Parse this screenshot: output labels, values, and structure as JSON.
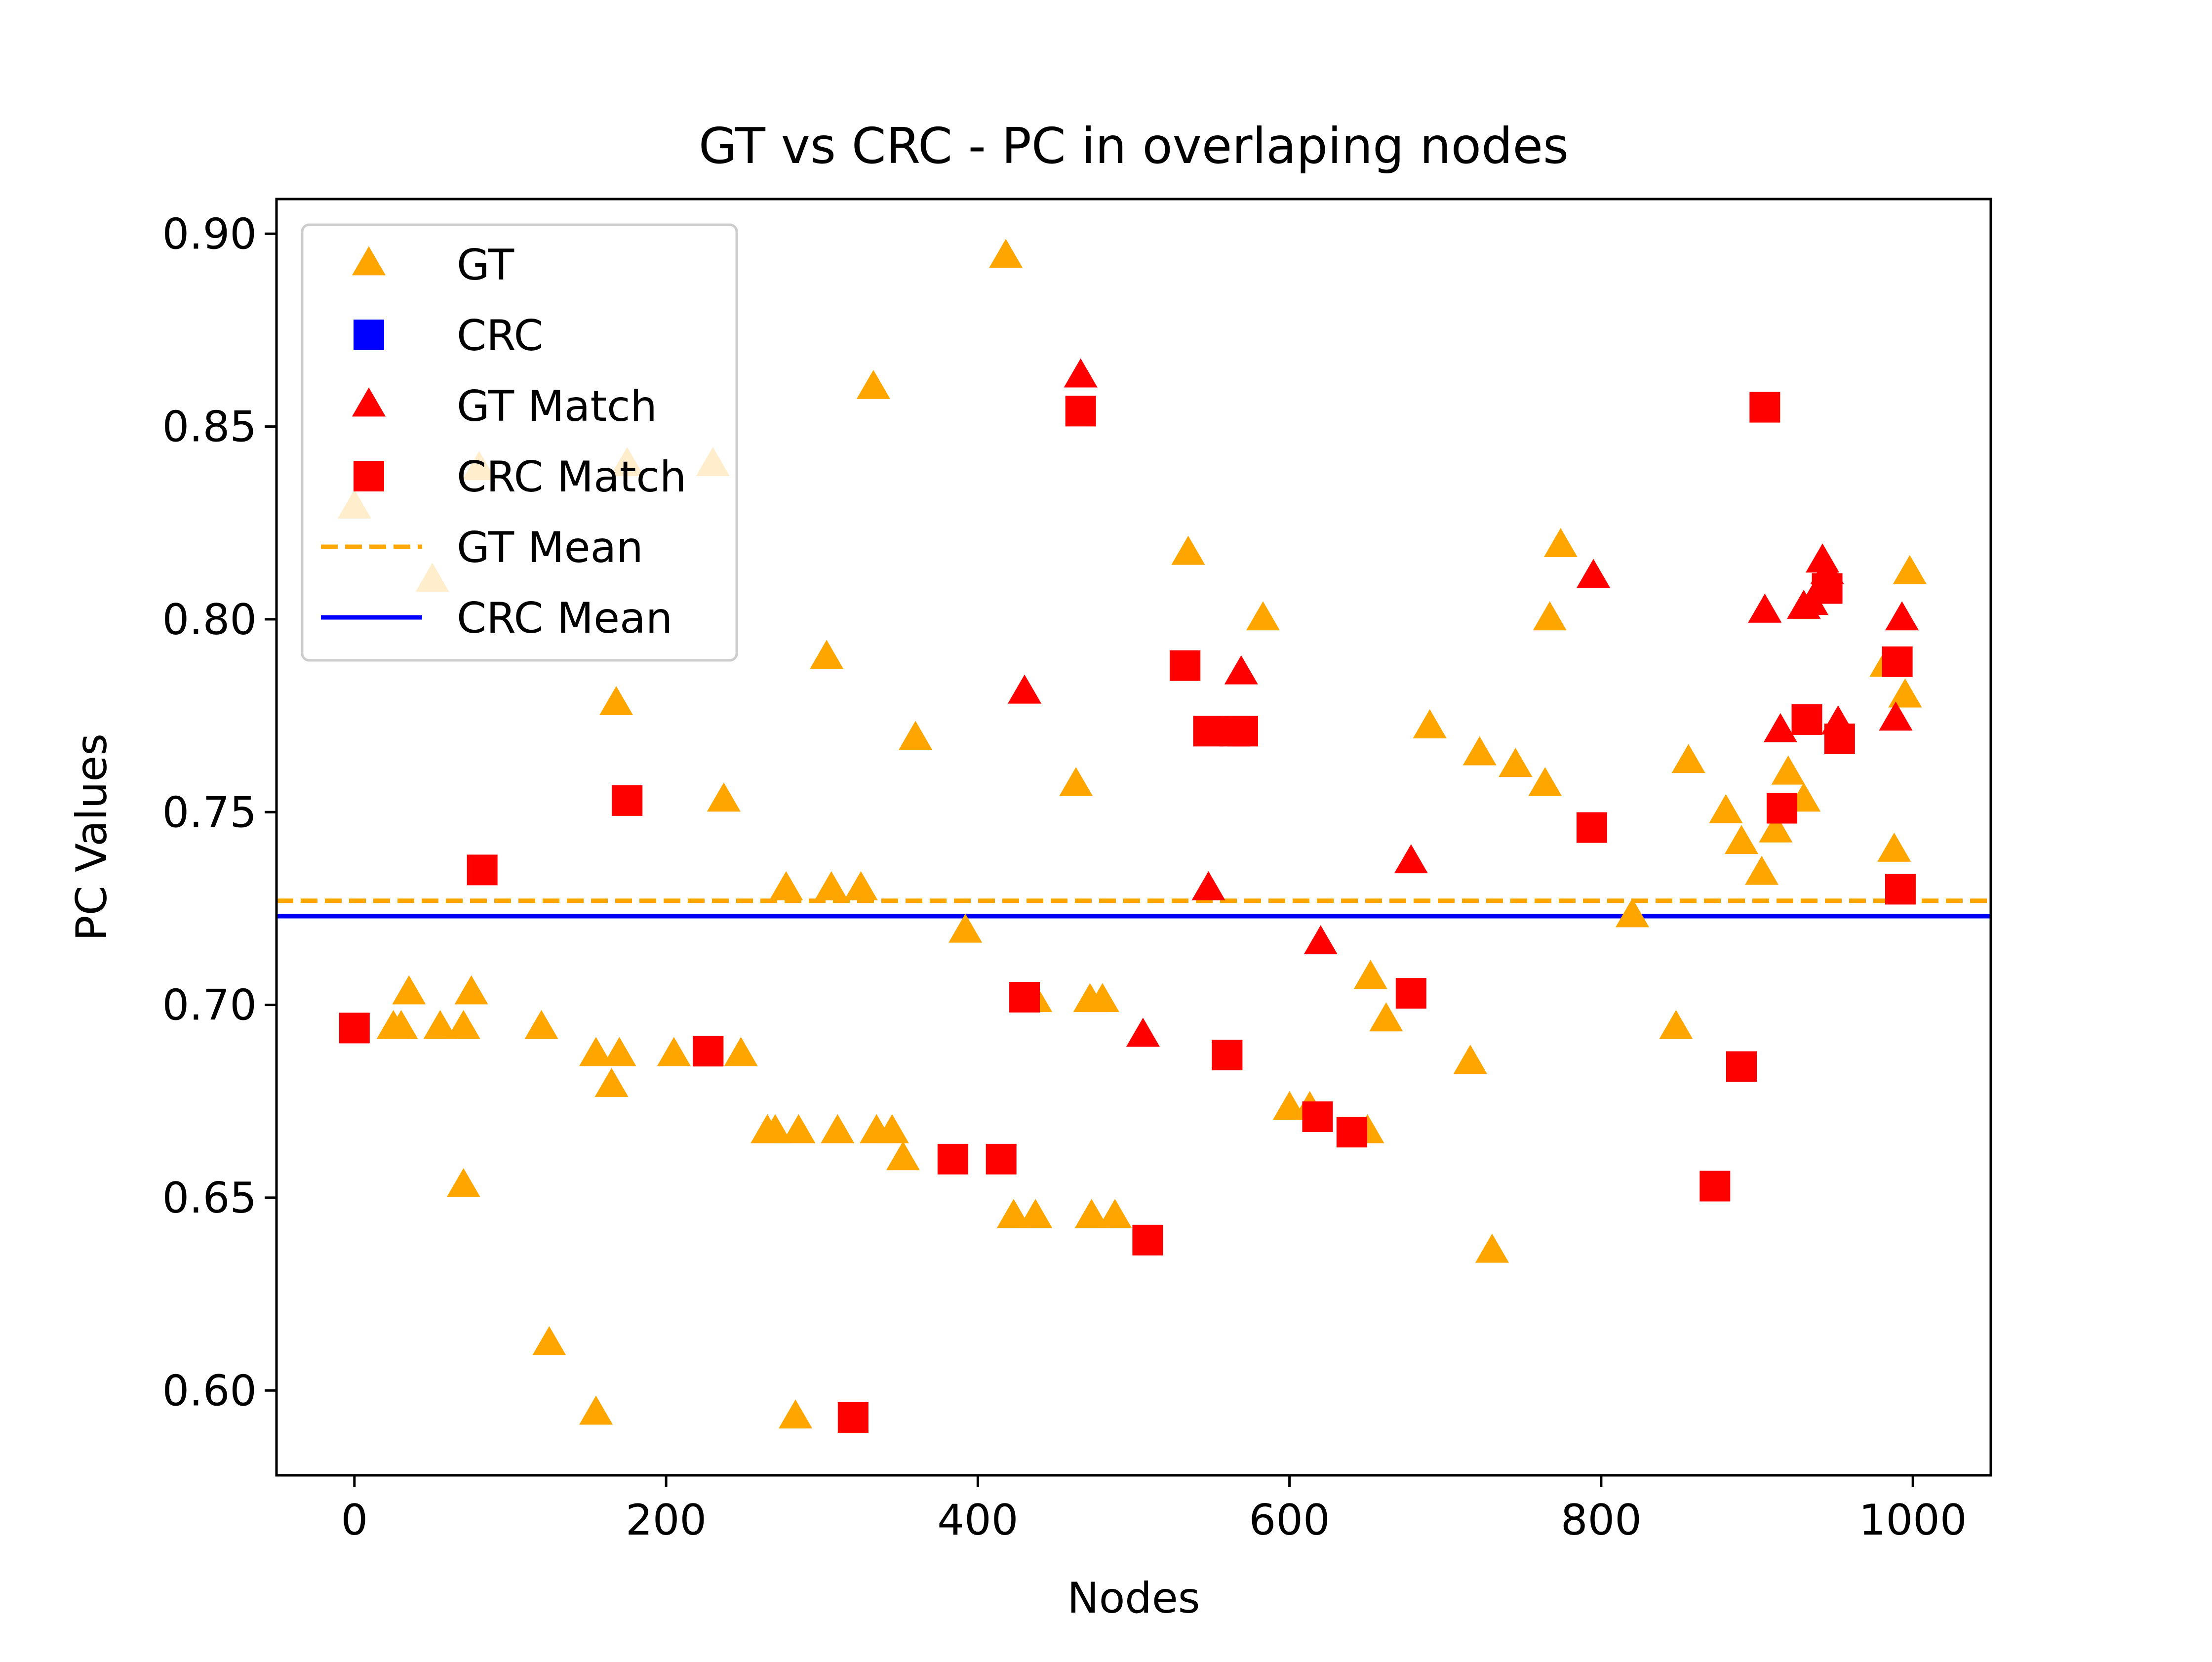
{
  "chart_data": {
    "type": "scatter",
    "title": "GT vs CRC - PC in overlaping nodes",
    "xlabel": "Nodes",
    "ylabel": "PC Values",
    "xlim": [
      -50,
      1050
    ],
    "ylim": [
      0.578,
      0.909
    ],
    "xticks": [
      0,
      200,
      400,
      600,
      800,
      1000
    ],
    "xtick_labels": [
      "0",
      "200",
      "400",
      "600",
      "800",
      "1000"
    ],
    "yticks": [
      0.6,
      0.65,
      0.7,
      0.75,
      0.8,
      0.85,
      0.9
    ],
    "ytick_labels": [
      "0.60",
      "0.65",
      "0.70",
      "0.75",
      "0.80",
      "0.85",
      "0.90"
    ],
    "grid": false,
    "legend_position": "upper-left",
    "colors": {
      "gt": "#ffa500",
      "crc": "#0000ff",
      "match": "#ff0000"
    },
    "legend": [
      {
        "label": "GT",
        "kind": "triangle",
        "color": "#ffa500"
      },
      {
        "label": "CRC",
        "kind": "square",
        "color": "#0000ff"
      },
      {
        "label": "GT Match",
        "kind": "triangle",
        "color": "#ff0000"
      },
      {
        "label": "CRC Match",
        "kind": "square",
        "color": "#ff0000"
      },
      {
        "label": "GT Mean",
        "kind": "dashed-line",
        "color": "#ffa500"
      },
      {
        "label": "CRC Mean",
        "kind": "solid-line",
        "color": "#0000ff"
      }
    ],
    "series": [
      {
        "name": "GT",
        "marker": "triangle",
        "color": "#ffa500",
        "points": [
          [
            0,
            0.829
          ],
          [
            25,
            0.694
          ],
          [
            30,
            0.694
          ],
          [
            35,
            0.703
          ],
          [
            50,
            0.81
          ],
          [
            55,
            0.694
          ],
          [
            70,
            0.694
          ],
          [
            70,
            0.653
          ],
          [
            75,
            0.703
          ],
          [
            80,
            0.839
          ],
          [
            120,
            0.694
          ],
          [
            125,
            0.612
          ],
          [
            155,
            0.594
          ],
          [
            155,
            0.687
          ],
          [
            165,
            0.679
          ],
          [
            168,
            0.778
          ],
          [
            170,
            0.687
          ],
          [
            175,
            0.84
          ],
          [
            205,
            0.687
          ],
          [
            230,
            0.84
          ],
          [
            237,
            0.753
          ],
          [
            248,
            0.687
          ],
          [
            265,
            0.667
          ],
          [
            270,
            0.667
          ],
          [
            277,
            0.73
          ],
          [
            283,
            0.593
          ],
          [
            285,
            0.667
          ],
          [
            303,
            0.79
          ],
          [
            306,
            0.73
          ],
          [
            310,
            0.667
          ],
          [
            325,
            0.73
          ],
          [
            333,
            0.86
          ],
          [
            335,
            0.667
          ],
          [
            345,
            0.667
          ],
          [
            352,
            0.66
          ],
          [
            360,
            0.769
          ],
          [
            392,
            0.719
          ],
          [
            418,
            0.894
          ],
          [
            423,
            0.645
          ],
          [
            437,
            0.645
          ],
          [
            437,
            0.701
          ],
          [
            463,
            0.757
          ],
          [
            472,
            0.701
          ],
          [
            473,
            0.645
          ],
          [
            480,
            0.701
          ],
          [
            488,
            0.645
          ],
          [
            535,
            0.817
          ],
          [
            583,
            0.8
          ],
          [
            600,
            0.673
          ],
          [
            613,
            0.673
          ],
          [
            650,
            0.667
          ],
          [
            652,
            0.707
          ],
          [
            662,
            0.696
          ],
          [
            690,
            0.772
          ],
          [
            716,
            0.685
          ],
          [
            722,
            0.765
          ],
          [
            730,
            0.636
          ],
          [
            745,
            0.762
          ],
          [
            764,
            0.757
          ],
          [
            767,
            0.8
          ],
          [
            774,
            0.819
          ],
          [
            820,
            0.723
          ],
          [
            848,
            0.694
          ],
          [
            856,
            0.763
          ],
          [
            880,
            0.75
          ],
          [
            890,
            0.742
          ],
          [
            903,
            0.734
          ],
          [
            912,
            0.745
          ],
          [
            920,
            0.76
          ],
          [
            930,
            0.753
          ],
          [
            983,
            0.788
          ],
          [
            988,
            0.74
          ],
          [
            995,
            0.78
          ],
          [
            998,
            0.812
          ]
        ]
      },
      {
        "name": "GT Match",
        "marker": "triangle",
        "color": "#ff0000",
        "points": [
          [
            430,
            0.781
          ],
          [
            466,
            0.863
          ],
          [
            506,
            0.692
          ],
          [
            548,
            0.73
          ],
          [
            569,
            0.786
          ],
          [
            620,
            0.716
          ],
          [
            678,
            0.737
          ],
          [
            795,
            0.811
          ],
          [
            905,
            0.802
          ],
          [
            915,
            0.771
          ],
          [
            930,
            0.803
          ],
          [
            935,
            0.804
          ],
          [
            942,
            0.815
          ],
          [
            945,
            0.812
          ],
          [
            952,
            0.773
          ],
          [
            989,
            0.774
          ],
          [
            993,
            0.8
          ]
        ]
      },
      {
        "name": "CRC Match",
        "marker": "square",
        "color": "#ff0000",
        "points": [
          [
            0,
            0.694
          ],
          [
            82,
            0.735
          ],
          [
            175,
            0.753
          ],
          [
            227,
            0.688
          ],
          [
            320,
            0.593
          ],
          [
            384,
            0.66
          ],
          [
            415,
            0.66
          ],
          [
            430,
            0.702
          ],
          [
            466,
            0.854
          ],
          [
            509,
            0.639
          ],
          [
            533,
            0.788
          ],
          [
            548,
            0.771
          ],
          [
            560,
            0.687
          ],
          [
            565,
            0.771
          ],
          [
            570,
            0.771
          ],
          [
            618,
            0.671
          ],
          [
            640,
            0.667
          ],
          [
            678,
            0.703
          ],
          [
            794,
            0.746
          ],
          [
            873,
            0.653
          ],
          [
            890,
            0.684
          ],
          [
            905,
            0.855
          ],
          [
            916,
            0.751
          ],
          [
            932,
            0.774
          ],
          [
            945,
            0.808
          ],
          [
            953,
            0.769
          ],
          [
            990,
            0.789
          ],
          [
            992,
            0.73
          ]
        ]
      }
    ],
    "means": [
      {
        "name": "GT Mean",
        "value": 0.727,
        "color": "#ffa500",
        "style": "dashed"
      },
      {
        "name": "CRC Mean",
        "value": 0.723,
        "color": "#0000ff",
        "style": "solid"
      }
    ]
  }
}
